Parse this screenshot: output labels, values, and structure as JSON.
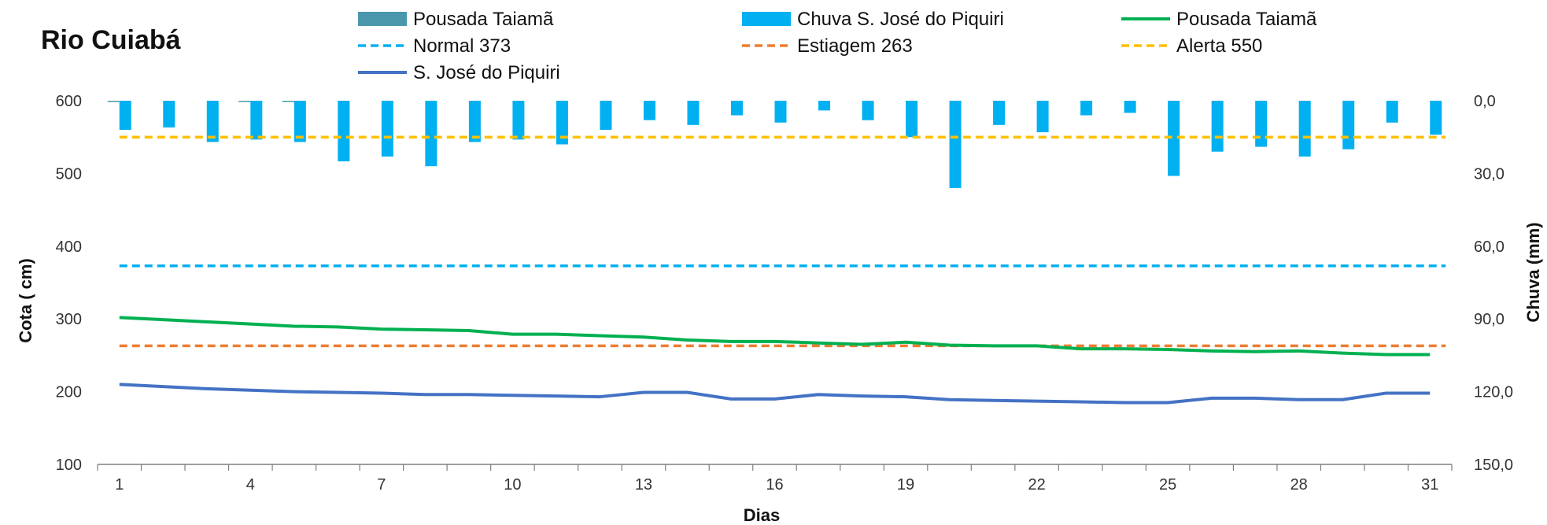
{
  "chart_data": {
    "type": "bar+line",
    "title": "Rio Cuiabá",
    "xlabel": "Dias",
    "ylabel": "Cota  ( cm)",
    "y2label": "Chuva (mm)",
    "ylim": [
      100,
      600
    ],
    "y2lim": [
      0,
      150
    ],
    "y2_inverted": true,
    "yticks": [
      "100",
      "200",
      "300",
      "400",
      "500",
      "600"
    ],
    "y2ticks": [
      "0,0",
      "30,0",
      "60,0",
      "90,0",
      "120,0",
      "150,0"
    ],
    "xticks": [
      "1",
      "4",
      "7",
      "10",
      "13",
      "16",
      "19",
      "22",
      "25",
      "28",
      "31"
    ],
    "x": [
      1,
      2,
      3,
      4,
      5,
      6,
      7,
      8,
      9,
      10,
      11,
      12,
      13,
      14,
      15,
      16,
      17,
      18,
      19,
      20,
      21,
      22,
      23,
      24,
      25,
      26,
      27,
      28,
      29,
      30,
      31
    ],
    "legend": [
      {
        "label": "Pousada Taiamã",
        "kind": "bar",
        "color": "#4a97ac"
      },
      {
        "label": "Chuva S. José do Piquiri",
        "kind": "bar",
        "color": "#00b0f0"
      },
      {
        "label": "Pousada Taiamã",
        "kind": "line",
        "color": "#00b050"
      },
      {
        "label": "Normal  373",
        "kind": "dash",
        "color": "#00b0f0"
      },
      {
        "label": "Estiagem 263",
        "kind": "dash",
        "color": "#ed7d31"
      },
      {
        "label": "Alerta 550",
        "kind": "dash",
        "color": "#ffc000"
      },
      {
        "label": "S. José do Piquiri",
        "kind": "line",
        "color": "#4472c4"
      }
    ],
    "series": [
      {
        "name": "Pousada Taiamã",
        "axis": "y2",
        "kind": "bar",
        "color": "#4a97ac",
        "values": [
          0.3,
          0,
          0,
          0.3,
          0.3,
          0,
          0,
          0,
          0,
          0,
          0,
          0,
          0,
          0,
          0,
          0,
          0,
          0,
          0,
          0,
          0,
          0,
          0,
          0,
          0,
          0,
          0,
          0,
          0,
          0,
          0
        ]
      },
      {
        "name": "Chuva S. José do Piquiri",
        "axis": "y2",
        "kind": "bar",
        "color": "#00b0f0",
        "values": [
          12,
          11,
          17,
          16,
          17,
          25,
          23,
          27,
          17,
          16,
          18,
          12,
          8,
          10,
          6,
          9,
          4,
          8,
          15,
          36,
          10,
          13,
          6,
          5,
          31,
          21,
          19,
          23,
          20,
          9,
          14
        ]
      },
      {
        "name": "Pousada Taiamã",
        "axis": "y",
        "kind": "line",
        "color": "#00b050",
        "values": [
          302,
          299,
          296,
          293,
          290,
          289,
          286,
          285,
          284,
          279,
          279,
          277,
          275,
          271,
          269,
          269,
          267,
          265,
          268,
          264,
          263,
          263,
          259,
          259,
          258,
          256,
          255,
          256,
          253,
          251,
          251
        ]
      },
      {
        "name": "S. José do Piquiri",
        "axis": "y",
        "kind": "line",
        "color": "#4472c4",
        "values": [
          210,
          207,
          204,
          202,
          200,
          199,
          198,
          196,
          196,
          195,
          194,
          193,
          199,
          199,
          190,
          190,
          196,
          194,
          193,
          189,
          188,
          187,
          186,
          185,
          185,
          191,
          191,
          189,
          189,
          198,
          198
        ]
      },
      {
        "name": "Normal  373",
        "axis": "y",
        "kind": "dash",
        "color": "#00b0f0",
        "value": 373
      },
      {
        "name": "Estiagem 263",
        "axis": "y",
        "kind": "dash",
        "color": "#ed7d31",
        "value": 263
      },
      {
        "name": "Alerta 550",
        "axis": "y",
        "kind": "dash",
        "color": "#ffc000",
        "value": 550
      }
    ]
  }
}
